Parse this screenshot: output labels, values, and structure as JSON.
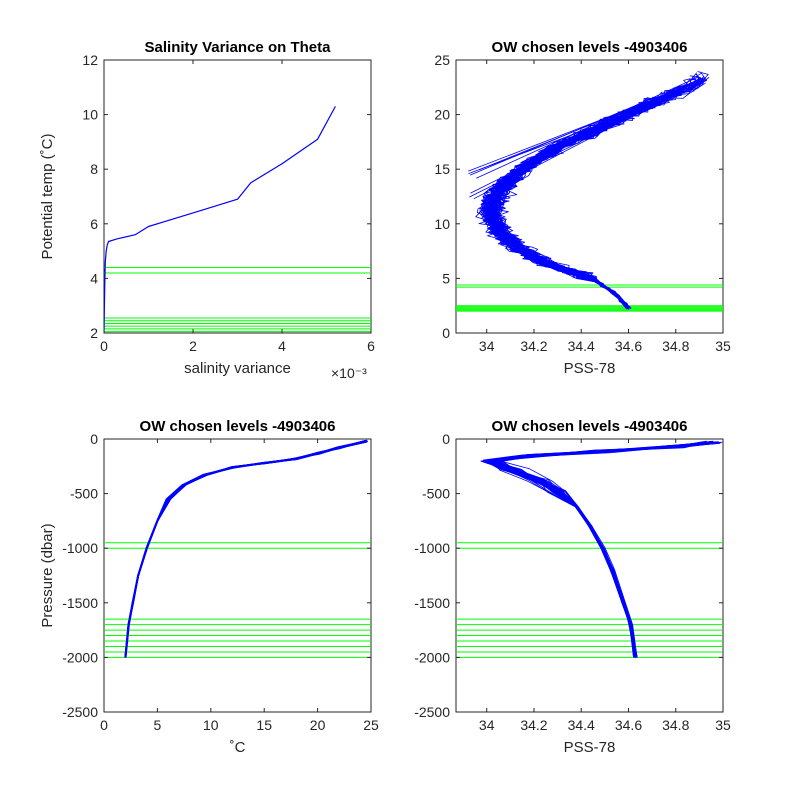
{
  "chart_data": [
    {
      "type": "line",
      "title": "Salinity Variance on Theta",
      "xlabel": "salinity variance",
      "ylabel": "Potential temp (˚C)",
      "x_exponent_label": "×10⁻³",
      "xlim": [
        0,
        0.006
      ],
      "ylim": [
        2,
        12
      ],
      "xticks": [
        0,
        0.002,
        0.004,
        0.006
      ],
      "xtick_labels": [
        "0",
        "2",
        "4",
        "6"
      ],
      "yticks": [
        2,
        4,
        6,
        8,
        10,
        12
      ],
      "ytick_labels": [
        "2",
        "4",
        "6",
        "8",
        "10",
        "12"
      ],
      "line_color": "#0000ff",
      "level_color": "#00ff00",
      "series": [
        {
          "x": [
            0.0,
            1e-05,
            2e-05,
            3e-05,
            5e-05,
            7e-05,
            0.0001,
            0.0003,
            0.0007,
            0.001,
            0.0014,
            0.002,
            0.0025,
            0.003,
            0.0033,
            0.004,
            0.0048,
            0.0052
          ],
          "y": [
            2.0,
            3.0,
            4.0,
            4.6,
            5.0,
            5.2,
            5.35,
            5.45,
            5.6,
            5.9,
            6.1,
            6.4,
            6.65,
            6.9,
            7.5,
            8.2,
            9.1,
            10.3
          ]
        }
      ],
      "chosen_levels": [
        2.05,
        2.15,
        2.25,
        2.35,
        2.45,
        2.55,
        4.2,
        4.4
      ]
    },
    {
      "type": "line",
      "title": "OW chosen levels -4903406",
      "xlabel": "PSS-78",
      "ylabel": "",
      "xlim": [
        33.87,
        35.0
      ],
      "ylim": [
        0,
        25
      ],
      "xticks": [
        34.0,
        34.2,
        34.4,
        34.6,
        34.8,
        35.0
      ],
      "xtick_labels": [
        "34",
        "34.2",
        "34.4",
        "34.6",
        "34.8",
        "35"
      ],
      "yticks": [
        0,
        5,
        10,
        15,
        20,
        25
      ],
      "ytick_labels": [
        "0",
        "5",
        "10",
        "15",
        "20",
        "25"
      ],
      "line_color": "#0000ff",
      "level_color": "#00ff00",
      "mean_profile": {
        "sal": [
          34.6,
          34.55,
          34.45,
          34.3,
          34.2,
          34.12,
          34.05,
          34.02,
          34.05,
          34.15,
          34.3,
          34.5,
          34.7,
          34.9
        ],
        "theta": [
          2.3,
          3.5,
          5.0,
          6.0,
          7.0,
          8.0,
          9.5,
          11.0,
          13.0,
          15.0,
          17.0,
          19.0,
          21.0,
          23.0
        ]
      },
      "chosen_levels": [
        2.0,
        2.1,
        2.2,
        2.3,
        2.4,
        2.5,
        4.2,
        4.4
      ]
    },
    {
      "type": "line",
      "title": "OW chosen levels -4903406",
      "xlabel": "˚C",
      "ylabel": "Pressure (dbar)",
      "xlim": [
        0,
        25
      ],
      "ylim": [
        -2500,
        0
      ],
      "xticks": [
        0,
        5,
        10,
        15,
        20,
        25
      ],
      "xtick_labels": [
        "0",
        "5",
        "10",
        "15",
        "20",
        "25"
      ],
      "yticks": [
        -2500,
        -2000,
        -1500,
        -1000,
        -500,
        0
      ],
      "ytick_labels": [
        "-2500",
        "-2000",
        "-1500",
        "-1000",
        "-500",
        "0"
      ],
      "line_color": "#0000ff",
      "level_color": "#00ff00",
      "mean_profile": {
        "x": [
          2.0,
          2.3,
          2.7,
          3.2,
          4.0,
          5.0,
          6.0,
          7.5,
          9.5,
          12.0,
          15.0,
          18.0,
          20.0,
          22.0,
          24.5
        ],
        "y": [
          -2000,
          -1700,
          -1500,
          -1250,
          -1000,
          -750,
          -550,
          -420,
          -330,
          -260,
          -220,
          -180,
          -130,
          -80,
          -20
        ]
      },
      "chosen_levels": [
        -2000,
        -1950,
        -1900,
        -1850,
        -1800,
        -1750,
        -1700,
        -1650,
        -1000,
        -950
      ]
    },
    {
      "type": "line",
      "title": "OW chosen levels -4903406",
      "xlabel": "PSS-78",
      "ylabel": "",
      "xlim": [
        33.87,
        35.0
      ],
      "ylim": [
        -2500,
        0
      ],
      "xticks": [
        34.0,
        34.2,
        34.4,
        34.6,
        34.8,
        35.0
      ],
      "xtick_labels": [
        "34",
        "34.2",
        "34.4",
        "34.6",
        "34.8",
        "35"
      ],
      "yticks": [
        -2500,
        -2000,
        -1500,
        -1000,
        -500,
        0
      ],
      "ytick_labels": [
        "-2500",
        "-2000",
        "-1500",
        "-1000",
        "-500",
        "0"
      ],
      "line_color": "#0000ff",
      "level_color": "#00ff00",
      "mean_profile": {
        "x": [
          34.63,
          34.61,
          34.58,
          34.53,
          34.49,
          34.44,
          34.38,
          34.3,
          34.22,
          34.1,
          34.02,
          34.2,
          34.5,
          34.8,
          34.95
        ],
        "y": [
          -2000,
          -1700,
          -1500,
          -1200,
          -1000,
          -800,
          -620,
          -480,
          -380,
          -280,
          -200,
          -150,
          -110,
          -70,
          -30
        ]
      },
      "chosen_levels": [
        -2000,
        -1950,
        -1900,
        -1850,
        -1800,
        -1750,
        -1700,
        -1650,
        -1000,
        -950
      ]
    }
  ]
}
